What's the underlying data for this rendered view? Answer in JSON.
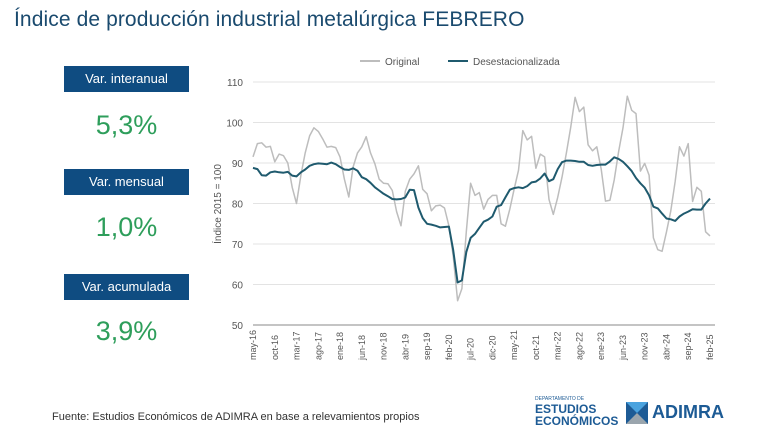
{
  "title": "Índice de producción industrial metalúrgica FEBRERO",
  "kpis": [
    {
      "label": "Var. interanual",
      "value": "5,3%"
    },
    {
      "label": "Var. mensual",
      "value": "1,0%"
    },
    {
      "label": "Var. acumulada",
      "value": "3,9%"
    }
  ],
  "footer": "Fuente: Estudios Económicos de ADIMRA en base a relevamientos propios",
  "logos": {
    "dept_small": "DEPARTAMENTO DE",
    "dept_line1": "ESTUDIOS",
    "dept_line2": "ECONÓMICOS",
    "brand": "ADIMRA"
  },
  "colors": {
    "title": "#1a4a6e",
    "label_bg": "#0f4c81",
    "value": "#2e9e5b",
    "original": "#bdbdbd",
    "sa": "#1f5a6e"
  },
  "chart_data": {
    "type": "line",
    "title": "",
    "xlabel": "",
    "ylabel": "Índice 2015 = 100",
    "ylim": [
      50,
      110
    ],
    "yticks": [
      50,
      60,
      70,
      80,
      90,
      100,
      110
    ],
    "grid": true,
    "legend": "top",
    "start": "may-16",
    "end": "feb-25",
    "xtick_labels": [
      "may-16",
      "oct-16",
      "mar-17",
      "ago-17",
      "ene-18",
      "jun-18",
      "nov-18",
      "abr-19",
      "sep-19",
      "feb-20",
      "jul-20",
      "dic-20",
      "may-21",
      "oct-21",
      "mar-22",
      "ago-22",
      "ene-23",
      "jun-23",
      "nov-23",
      "abr-24",
      "sep-24",
      "feb-25"
    ],
    "xtick_every": 5,
    "series": [
      {
        "name": "Original",
        "color": "#bdbdbd",
        "values": [
          91.5,
          94.8,
          95,
          93.9,
          94.1,
          90.3,
          92.2,
          91.8,
          90,
          84,
          80,
          87,
          92.5,
          96.7,
          98.7,
          97.8,
          96,
          93.9,
          94.1,
          93.8,
          91.5,
          86,
          81.6,
          89,
          92.5,
          94,
          96.5,
          92.5,
          89.8,
          86,
          85,
          84.9,
          83.2,
          78,
          74.5,
          83,
          86,
          87.3,
          89.3,
          83.5,
          82.4,
          78.2,
          79.4,
          79.6,
          78.9,
          74.5,
          67,
          56,
          59,
          73,
          85,
          82,
          82.7,
          78.6,
          81,
          82,
          82,
          75,
          74.4,
          78.6,
          83.5,
          88.2,
          98,
          95.7,
          96.6,
          88.7,
          92.2,
          91.5,
          81,
          77.3,
          81.5,
          86.5,
          92.5,
          98.8,
          106.2,
          102.7,
          103.8,
          94.5,
          93,
          94,
          88.5,
          80.6,
          80.8,
          85.8,
          92.8,
          98.7,
          106.5,
          103,
          102.2,
          88,
          89.9,
          87,
          71.5,
          68.6,
          68.2,
          73,
          78.2,
          85.5,
          94,
          91.7,
          94.8,
          80.5,
          84,
          83,
          73,
          72
        ]
      },
      {
        "name": "Desestacionalizada",
        "color": "#1f5a6e",
        "values": [
          88.8,
          88.5,
          87,
          86.9,
          87.7,
          87.9,
          87.7,
          87.6,
          87.8,
          86.9,
          86.7,
          87.7,
          88.4,
          89.3,
          89.7,
          89.9,
          89.8,
          89.7,
          90.1,
          89.7,
          89,
          88.4,
          88.3,
          88.7,
          88.1,
          86.5,
          86,
          85.1,
          84,
          83.2,
          82.4,
          81.8,
          81.1,
          81,
          81.1,
          81.5,
          83.4,
          83.3,
          79,
          76.4,
          75,
          74.8,
          74.5,
          74.1,
          74.2,
          74.3,
          68.5,
          60.5,
          61,
          68,
          71.5,
          72.5,
          74,
          75.5,
          76,
          76.8,
          79.2,
          79.6,
          81.5,
          83.4,
          83.8,
          84,
          83.8,
          84.3,
          85.2,
          85.4,
          86.2,
          87.4,
          85.5,
          86,
          88.5,
          90.2,
          90.6,
          90.6,
          90.5,
          90.3,
          90.3,
          89.5,
          89.3,
          89.5,
          89.6,
          89.6,
          90.4,
          91.4,
          91,
          90.3,
          89.2,
          88,
          86.3,
          85,
          83.9,
          82,
          79.2,
          78.8,
          77.5,
          76.3,
          76.1,
          75.7,
          76.8,
          77.5,
          78,
          78.6,
          78.5,
          78.5,
          80,
          81.2
        ]
      }
    ]
  }
}
